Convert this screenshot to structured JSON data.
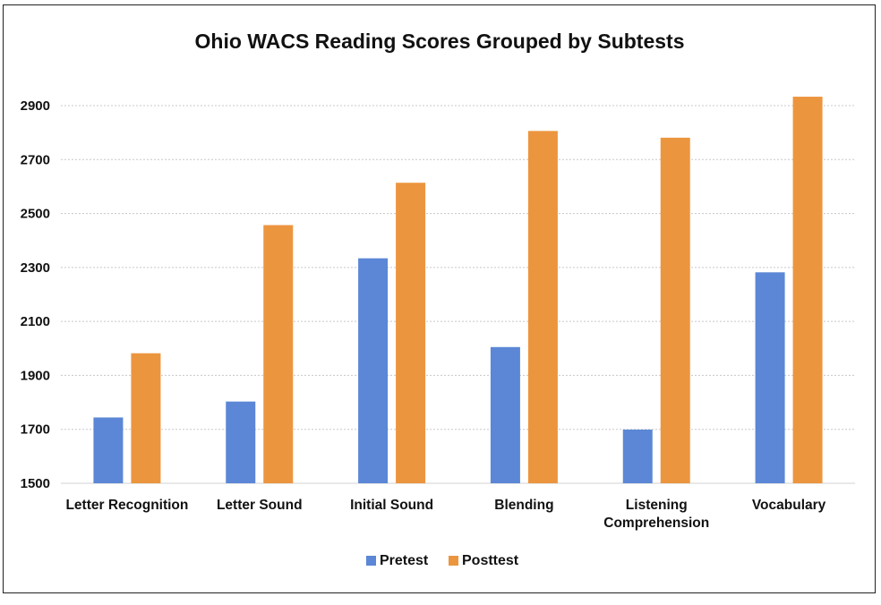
{
  "chart_data": {
    "type": "bar",
    "title": "Ohio WACS Reading Scores Grouped by Subtests",
    "categories": [
      [
        "Letter Recognition"
      ],
      [
        "Letter Sound"
      ],
      [
        "Initial Sound"
      ],
      [
        "Blending"
      ],
      [
        "Listening",
        "Comprehension"
      ],
      [
        "Vocabulary"
      ]
    ],
    "series": [
      {
        "name": "Pretest",
        "color": "#5B87D6",
        "values": [
          1744,
          1803,
          2334,
          2005,
          1699,
          2282
        ]
      },
      {
        "name": "Posttest",
        "color": "#EC953F",
        "values": [
          1982,
          2457,
          2614,
          2806,
          2781,
          2933
        ]
      }
    ],
    "ylim": [
      1500,
      2900
    ],
    "yticks": [
      1500,
      1700,
      1900,
      2100,
      2300,
      2500,
      2700,
      2900
    ],
    "grid": true,
    "legend_position": "bottom"
  }
}
